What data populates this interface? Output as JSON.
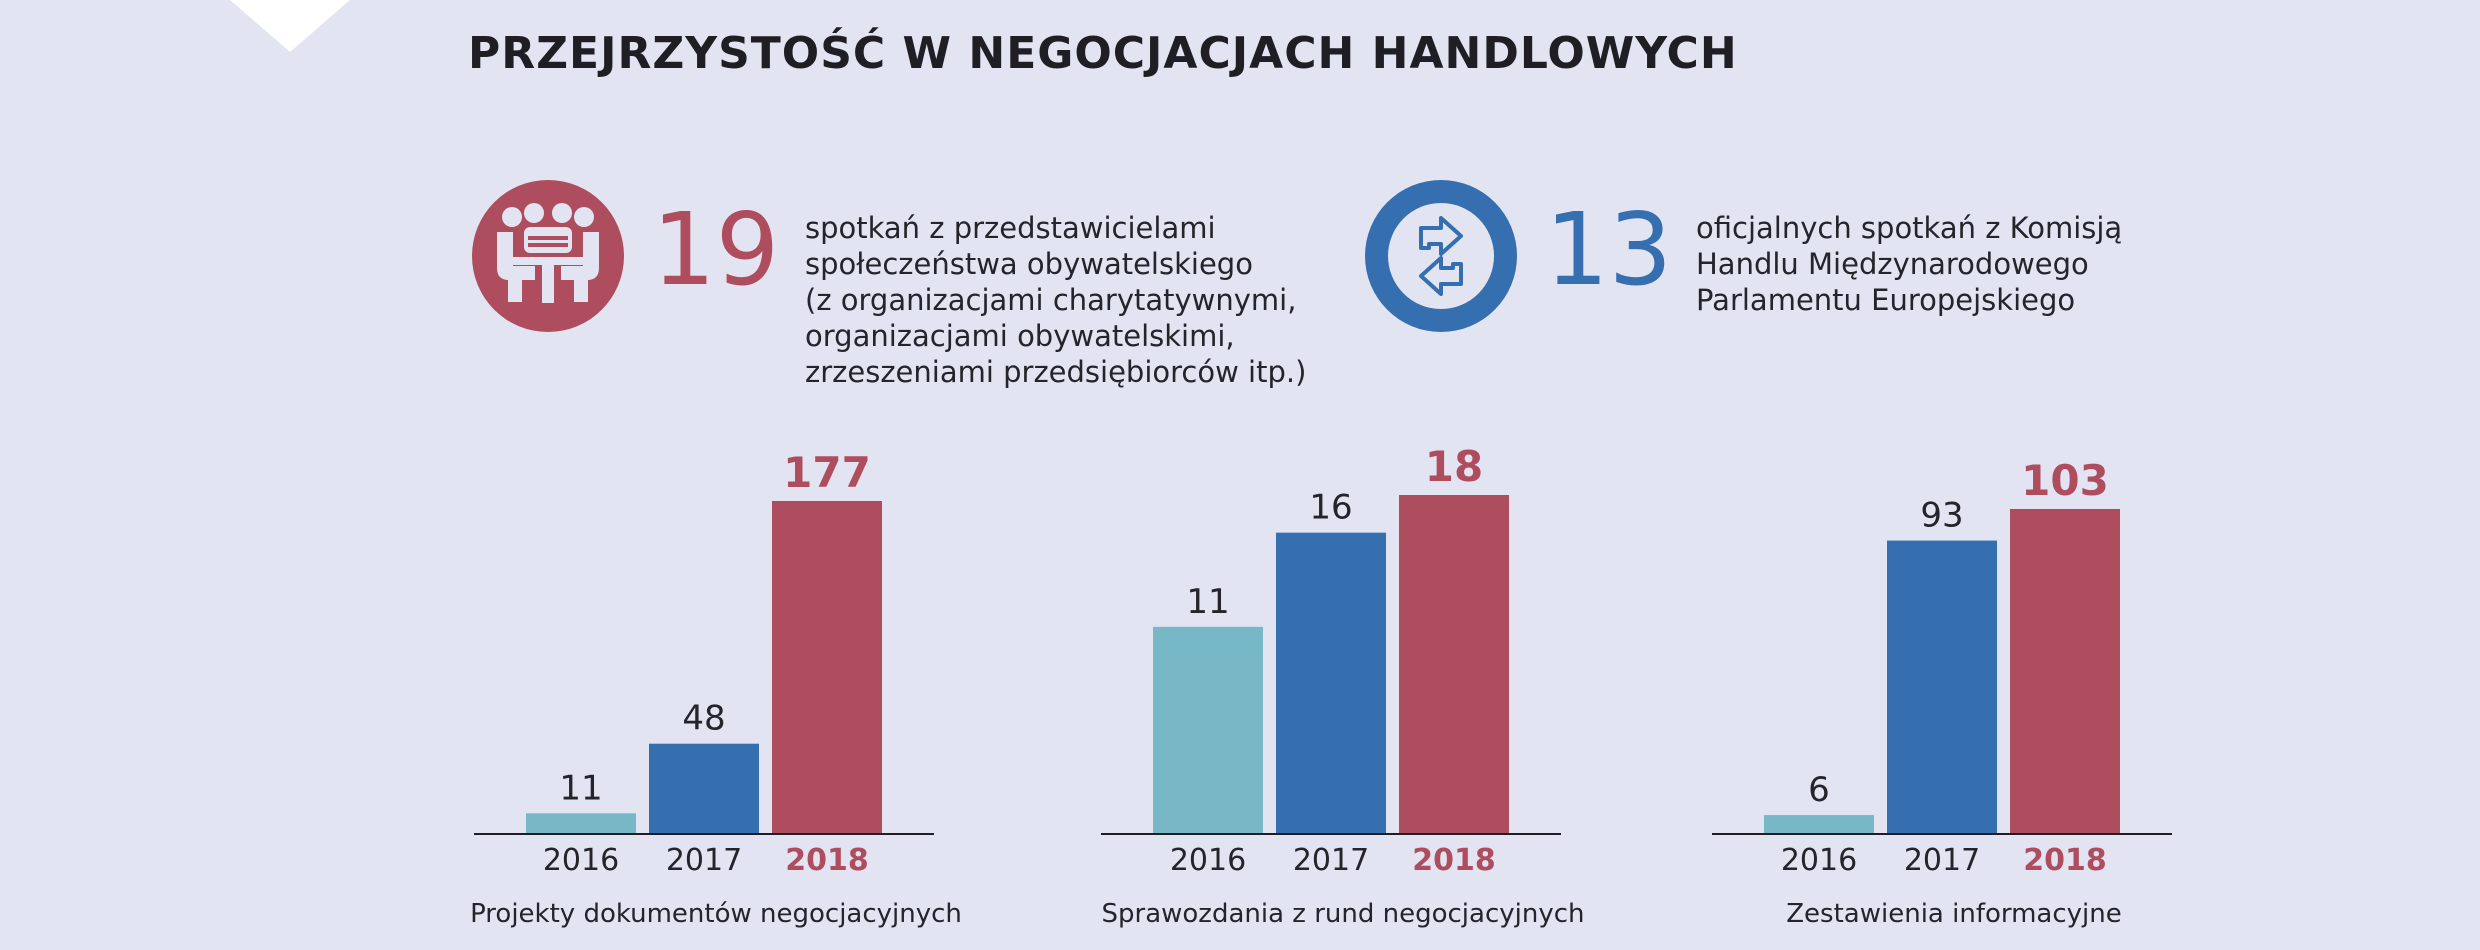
{
  "title": "PRZEJRZYSTOŚĆ W NEGOCJACJACH HANDLOWYCH",
  "colors": {
    "light": "#78b8c6",
    "blue": "#356faf",
    "red": "#ae4d5d",
    "background": "#e2e4f2",
    "text": "#1e1e24"
  },
  "stats": [
    {
      "icon": "meeting-people-icon",
      "value": "19",
      "text": "spotkań z przedstawicielami\nspołeczeństwa obywatelskiego\n(z organizacjami charytatywnymi,\norganizacjami obywatelskimi,\nzrzeszeniami przedsiębiorców itp.)"
    },
    {
      "icon": "exchange-arrows-icon",
      "value": "13",
      "text": "oficjalnych spotkań z Komisją\nHandlu Międzynarodowego\nParlamentu Europejskiego"
    }
  ],
  "chart_data": [
    {
      "type": "bar",
      "categories": [
        "2016",
        "2017",
        "2018"
      ],
      "values": [
        11,
        48,
        177
      ],
      "xlabel": "Projekty dokumentów negocjacyjnych",
      "colors": [
        "#78b8c6",
        "#356faf",
        "#ae4d5d"
      ],
      "highlight_last": true
    },
    {
      "type": "bar",
      "categories": [
        "2016",
        "2017",
        "2018"
      ],
      "values": [
        11,
        16,
        18
      ],
      "xlabel": "Sprawozdania z rund negocjacyjnych",
      "colors": [
        "#78b8c6",
        "#356faf",
        "#ae4d5d"
      ],
      "highlight_last": true
    },
    {
      "type": "bar",
      "categories": [
        "2016",
        "2017",
        "2018"
      ],
      "values": [
        6,
        93,
        103
      ],
      "xlabel": "Zestawienia informacyjne",
      "colors": [
        "#78b8c6",
        "#356faf",
        "#ae4d5d"
      ],
      "highlight_last": true
    }
  ]
}
